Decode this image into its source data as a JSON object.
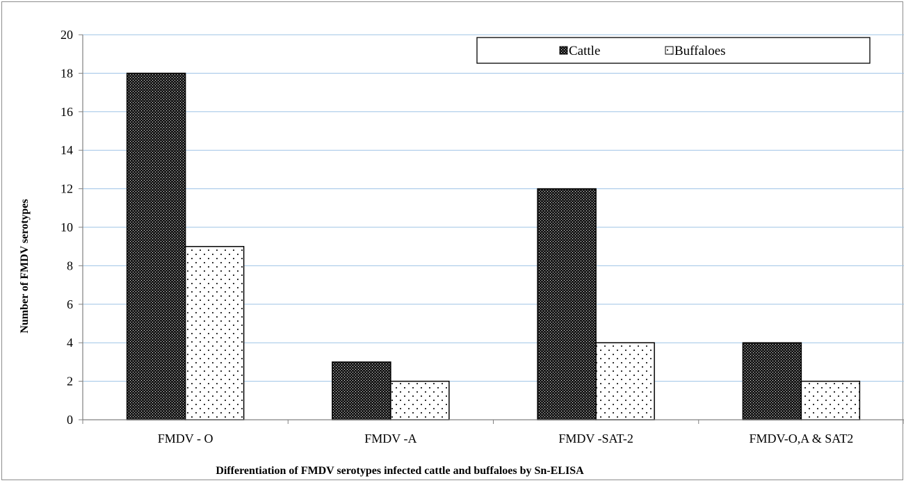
{
  "chart_data": {
    "type": "bar",
    "title": "",
    "xlabel": "Differentiation of  FMDV serotypes infected cattle and buffaloes  by Sn-ELISA",
    "ylabel": "Number of FMDV serotypes",
    "categories": [
      "FMDV - O",
      "FMDV -A",
      "FMDV -SAT-2",
      "FMDV-O,A & SAT2"
    ],
    "series": [
      {
        "name": "Cattle",
        "values": [
          18,
          3,
          12,
          4
        ],
        "pattern": "dense-dots",
        "color": "#000000"
      },
      {
        "name": "Buffaloes",
        "values": [
          9,
          2,
          4,
          2
        ],
        "pattern": "sparse-dots",
        "color": "#ffffff"
      }
    ],
    "ylim": [
      0,
      20
    ],
    "yticks": [
      0,
      2,
      4,
      6,
      8,
      10,
      12,
      14,
      16,
      18,
      20
    ],
    "grid": true,
    "gridColor": "#9dc3e6",
    "legend": {
      "position": "top-right",
      "entries": [
        "Cattle",
        "Buffaloes"
      ]
    }
  }
}
